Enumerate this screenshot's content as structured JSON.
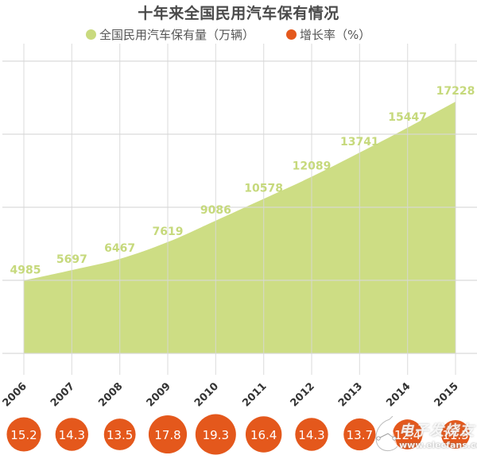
{
  "chart_data": {
    "type": "area",
    "title": "十年来全国民用汽车保有情况",
    "xlabel": "",
    "ylabel": "",
    "categories": [
      "2006",
      "2007",
      "2008",
      "2009",
      "2010",
      "2011",
      "2012",
      "2013",
      "2014",
      "2015"
    ],
    "series": [
      {
        "name": "全国民用汽车保有量（万辆）",
        "type": "area",
        "color": "#cddd84",
        "values": [
          4985,
          5697,
          6467,
          7619,
          9086,
          10578,
          12089,
          13741,
          15447,
          17228
        ]
      },
      {
        "name": "增长率（%）",
        "type": "bubble",
        "color": "#e4581c",
        "values": [
          15.2,
          14.3,
          13.5,
          17.8,
          19.3,
          16.4,
          14.3,
          13.7,
          12.4,
          11.5
        ]
      }
    ],
    "ylim": [
      0,
      20000
    ],
    "y_gridlines": [
      0,
      5000,
      10000,
      15000,
      20000
    ],
    "grid": true,
    "legend_position": "top",
    "x_tick_rotation": -45
  },
  "title": "十年来全国民用汽车保有情况",
  "legend": {
    "items": [
      {
        "label": "全国民用汽车保有量（万辆）",
        "color": "#c9da7e"
      },
      {
        "label": "增长率（%）",
        "color": "#e4581c"
      }
    ]
  },
  "value_labels": [
    "4985",
    "5697",
    "6467",
    "7619",
    "9086",
    "10578",
    "12089",
    "13741",
    "15447",
    "17228"
  ],
  "year_labels": [
    "2006",
    "2007",
    "2008",
    "2009",
    "2010",
    "2011",
    "2012",
    "2013",
    "2014",
    "2015"
  ],
  "rate_labels": [
    "15.2",
    "14.3",
    "13.5",
    "17.8",
    "19.3",
    "16.4",
    "14.3",
    "13.7",
    "12.4",
    "11.5"
  ],
  "watermark": {
    "text": "电子发烧友",
    "url": "www.elecfans.com"
  }
}
